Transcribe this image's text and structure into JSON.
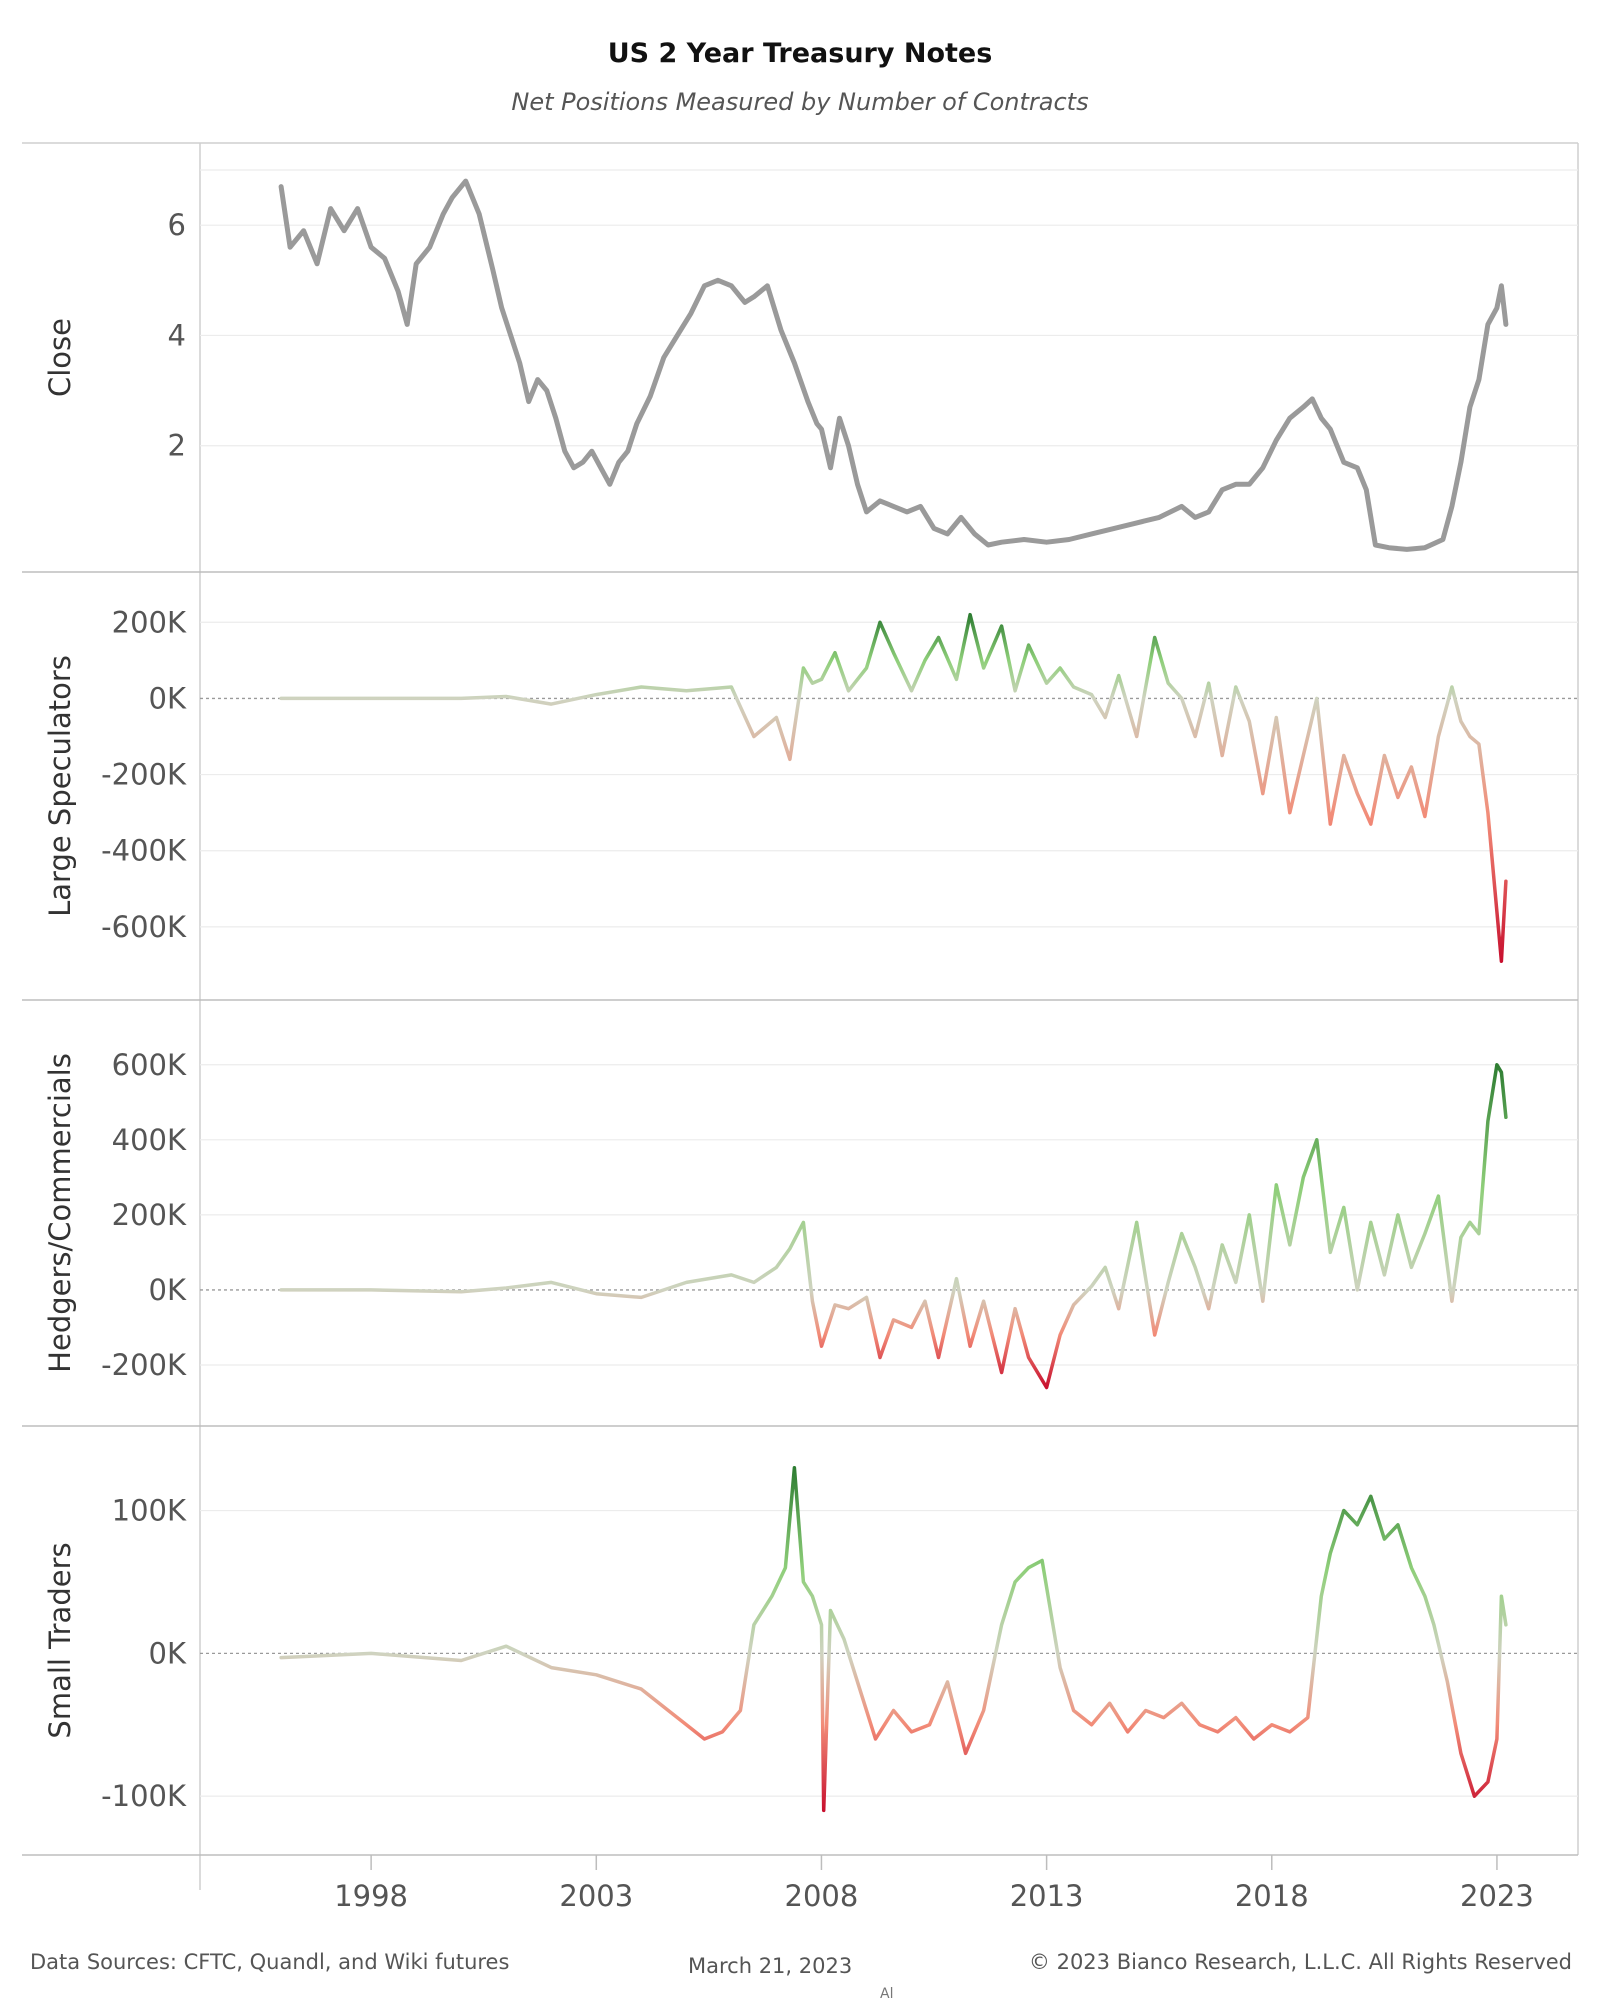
{
  "title": "US 2 Year Treasury Notes",
  "subtitle": "Net Positions Measured by Number of Contracts",
  "footer": {
    "sources": "Data Sources: CFTC, Quandl, and Wiki futures",
    "date": "March 21, 2023",
    "copyright": "© 2023 Bianco Research, L.L.C. All Rights Reserved",
    "mark": "Al"
  },
  "colors": {
    "close_line": "#9a9a9a",
    "positive_strong": "#2e7d32",
    "positive": "#8fcf7a",
    "neutral": "#cfd3c0",
    "negative": "#f28c78",
    "negative_strong": "#c8102e",
    "zero_line": "#999999"
  },
  "chart_data": [
    {
      "type": "line",
      "panel": "close",
      "ylabel": "Close",
      "yticks": [
        2,
        4,
        6
      ],
      "yticklabels": [
        "2",
        "4",
        "6"
      ],
      "ylim": [
        0,
        7.2
      ],
      "xlim": [
        1994.2,
        2024.8
      ],
      "xticks": [
        1998,
        2003,
        2008,
        2013,
        2018,
        2023
      ],
      "xticklabels": [
        "1998",
        "2003",
        "2008",
        "2013",
        "2018",
        "2023"
      ],
      "x": [
        1996.0,
        1996.2,
        1996.5,
        1996.8,
        1997.1,
        1997.4,
        1997.7,
        1998.0,
        1998.3,
        1998.6,
        1998.8,
        1999.0,
        1999.3,
        1999.6,
        1999.8,
        2000.1,
        2000.4,
        2000.7,
        2000.9,
        2001.1,
        2001.3,
        2001.5,
        2001.7,
        2001.9,
        2002.1,
        2002.3,
        2002.5,
        2002.7,
        2002.9,
        2003.1,
        2003.3,
        2003.5,
        2003.7,
        2003.9,
        2004.2,
        2004.5,
        2004.8,
        2005.1,
        2005.4,
        2005.7,
        2006.0,
        2006.3,
        2006.5,
        2006.8,
        2007.1,
        2007.4,
        2007.7,
        2007.9,
        2008.0,
        2008.2,
        2008.4,
        2008.6,
        2008.8,
        2009.0,
        2009.3,
        2009.6,
        2009.9,
        2010.2,
        2010.5,
        2010.8,
        2011.1,
        2011.4,
        2011.7,
        2012.0,
        2012.5,
        2013.0,
        2013.5,
        2014.0,
        2014.5,
        2015.0,
        2015.5,
        2016.0,
        2016.3,
        2016.6,
        2016.9,
        2017.2,
        2017.5,
        2017.8,
        2018.1,
        2018.4,
        2018.7,
        2018.9,
        2019.1,
        2019.3,
        2019.6,
        2019.9,
        2020.1,
        2020.3,
        2020.6,
        2021.0,
        2021.4,
        2021.8,
        2022.0,
        2022.2,
        2022.4,
        2022.6,
        2022.8,
        2023.0,
        2023.1,
        2023.2
      ],
      "values": [
        6.7,
        5.6,
        5.9,
        5.3,
        6.3,
        5.9,
        6.3,
        5.6,
        5.4,
        4.8,
        4.2,
        5.3,
        5.6,
        6.2,
        6.5,
        6.8,
        6.2,
        5.2,
        4.5,
        4.0,
        3.5,
        2.8,
        3.2,
        3.0,
        2.5,
        1.9,
        1.6,
        1.7,
        1.9,
        1.6,
        1.3,
        1.7,
        1.9,
        2.4,
        2.9,
        3.6,
        4.0,
        4.4,
        4.9,
        5.0,
        4.9,
        4.6,
        4.7,
        4.9,
        4.1,
        3.5,
        2.8,
        2.4,
        2.3,
        1.6,
        2.5,
        2.0,
        1.3,
        0.8,
        1.0,
        0.9,
        0.8,
        0.9,
        0.5,
        0.4,
        0.7,
        0.4,
        0.2,
        0.25,
        0.3,
        0.25,
        0.3,
        0.4,
        0.5,
        0.6,
        0.7,
        0.9,
        0.7,
        0.8,
        1.2,
        1.3,
        1.3,
        1.6,
        2.1,
        2.5,
        2.7,
        2.85,
        2.5,
        2.3,
        1.7,
        1.6,
        1.2,
        0.2,
        0.15,
        0.12,
        0.15,
        0.3,
        0.9,
        1.7,
        2.7,
        3.2,
        4.2,
        4.5,
        4.9,
        4.2
      ],
      "line_color": "#9a9a9a"
    },
    {
      "type": "line",
      "panel": "large-speculators",
      "ylabel": "Large Speculators",
      "yticks": [
        -600000,
        -400000,
        -200000,
        0,
        200000
      ],
      "yticklabels": [
        "-600K",
        "-400K",
        "-200K",
        "0K",
        "200K"
      ],
      "ylim": [
        -750000,
        290000
      ],
      "x": [
        1996.0,
        1998.0,
        2000.0,
        2001.0,
        2002.0,
        2003.0,
        2004.0,
        2005.0,
        2006.0,
        2006.5,
        2007.0,
        2007.3,
        2007.6,
        2007.8,
        2008.0,
        2008.3,
        2008.6,
        2009.0,
        2009.3,
        2009.6,
        2010.0,
        2010.3,
        2010.6,
        2011.0,
        2011.3,
        2011.6,
        2012.0,
        2012.3,
        2012.6,
        2013.0,
        2013.3,
        2013.6,
        2014.0,
        2014.3,
        2014.6,
        2015.0,
        2015.4,
        2015.7,
        2016.0,
        2016.3,
        2016.6,
        2016.9,
        2017.2,
        2017.5,
        2017.8,
        2018.1,
        2018.4,
        2018.7,
        2019.0,
        2019.3,
        2019.6,
        2019.9,
        2020.2,
        2020.5,
        2020.8,
        2021.1,
        2021.4,
        2021.7,
        2022.0,
        2022.2,
        2022.4,
        2022.6,
        2022.8,
        2023.0,
        2023.1,
        2023.2
      ],
      "values": [
        0,
        0,
        0,
        5000,
        -15000,
        10000,
        30000,
        20000,
        30000,
        -100000,
        -50000,
        -160000,
        80000,
        40000,
        50000,
        120000,
        20000,
        80000,
        200000,
        120000,
        20000,
        100000,
        160000,
        50000,
        220000,
        80000,
        190000,
        20000,
        140000,
        40000,
        80000,
        30000,
        10000,
        -50000,
        60000,
        -100000,
        160000,
        40000,
        0,
        -100000,
        40000,
        -150000,
        30000,
        -60000,
        -250000,
        -50000,
        -300000,
        -150000,
        0,
        -330000,
        -150000,
        -250000,
        -330000,
        -150000,
        -260000,
        -180000,
        -310000,
        -100000,
        30000,
        -60000,
        -100000,
        -120000,
        -300000,
        -560000,
        -690000,
        -480000
      ]
    },
    {
      "type": "line",
      "panel": "hedgers-commercials",
      "ylabel": "Hedgers/Commercials",
      "yticks": [
        -200000,
        0,
        200000,
        400000,
        600000
      ],
      "yticklabels": [
        "-200K",
        "0K",
        "200K",
        "400K",
        "600K"
      ],
      "ylim": [
        -320000,
        730000
      ],
      "x": [
        1996.0,
        1998.0,
        2000.0,
        2001.0,
        2002.0,
        2003.0,
        2004.0,
        2005.0,
        2006.0,
        2006.5,
        2007.0,
        2007.3,
        2007.6,
        2007.8,
        2008.0,
        2008.3,
        2008.6,
        2009.0,
        2009.3,
        2009.6,
        2010.0,
        2010.3,
        2010.6,
        2011.0,
        2011.3,
        2011.6,
        2012.0,
        2012.3,
        2012.6,
        2013.0,
        2013.3,
        2013.6,
        2014.0,
        2014.3,
        2014.6,
        2015.0,
        2015.4,
        2015.7,
        2016.0,
        2016.3,
        2016.6,
        2016.9,
        2017.2,
        2017.5,
        2017.8,
        2018.1,
        2018.4,
        2018.7,
        2019.0,
        2019.3,
        2019.6,
        2019.9,
        2020.2,
        2020.5,
        2020.8,
        2021.1,
        2021.4,
        2021.7,
        2022.0,
        2022.2,
        2022.4,
        2022.6,
        2022.8,
        2023.0,
        2023.1,
        2023.2
      ],
      "values": [
        0,
        0,
        -5000,
        5000,
        20000,
        -10000,
        -20000,
        20000,
        40000,
        20000,
        60000,
        110000,
        180000,
        -30000,
        -150000,
        -40000,
        -50000,
        -20000,
        -180000,
        -80000,
        -100000,
        -30000,
        -180000,
        30000,
        -150000,
        -30000,
        -220000,
        -50000,
        -180000,
        -260000,
        -120000,
        -40000,
        10000,
        60000,
        -50000,
        180000,
        -120000,
        20000,
        150000,
        60000,
        -50000,
        120000,
        20000,
        200000,
        -30000,
        280000,
        120000,
        300000,
        400000,
        100000,
        220000,
        0,
        180000,
        40000,
        200000,
        60000,
        150000,
        250000,
        -30000,
        140000,
        180000,
        150000,
        450000,
        600000,
        580000,
        460000
      ]
    },
    {
      "type": "line",
      "panel": "small-traders",
      "ylabel": "Small Traders",
      "yticks": [
        -100000,
        0,
        100000
      ],
      "yticklabels": [
        "-100K",
        "0K",
        "100K"
      ],
      "ylim": [
        -130000,
        148000
      ],
      "x": [
        1996.0,
        1998.0,
        2000.0,
        2001.0,
        2002.0,
        2003.0,
        2004.0,
        2004.6,
        2005.0,
        2005.4,
        2005.8,
        2006.2,
        2006.5,
        2006.9,
        2007.2,
        2007.4,
        2007.6,
        2007.8,
        2008.0,
        2008.05,
        2008.2,
        2008.5,
        2008.9,
        2009.2,
        2009.6,
        2010.0,
        2010.4,
        2010.8,
        2011.2,
        2011.6,
        2012.0,
        2012.3,
        2012.6,
        2012.9,
        2013.3,
        2013.6,
        2014.0,
        2014.4,
        2014.8,
        2015.2,
        2015.6,
        2016.0,
        2016.4,
        2016.8,
        2017.2,
        2017.6,
        2018.0,
        2018.4,
        2018.8,
        2019.1,
        2019.3,
        2019.6,
        2019.9,
        2020.2,
        2020.5,
        2020.8,
        2021.1,
        2021.4,
        2021.6,
        2021.9,
        2022.2,
        2022.5,
        2022.8,
        2023.0,
        2023.1,
        2023.2
      ],
      "values": [
        -3000,
        0,
        -5000,
        5000,
        -10000,
        -15000,
        -25000,
        -40000,
        -50000,
        -60000,
        -55000,
        -40000,
        20000,
        40000,
        60000,
        130000,
        50000,
        40000,
        20000,
        -110000,
        30000,
        10000,
        -30000,
        -60000,
        -40000,
        -55000,
        -50000,
        -20000,
        -70000,
        -40000,
        20000,
        50000,
        60000,
        65000,
        -10000,
        -40000,
        -50000,
        -35000,
        -55000,
        -40000,
        -45000,
        -35000,
        -50000,
        -55000,
        -45000,
        -60000,
        -50000,
        -55000,
        -45000,
        40000,
        70000,
        100000,
        90000,
        110000,
        80000,
        90000,
        60000,
        40000,
        20000,
        -20000,
        -70000,
        -100000,
        -90000,
        -60000,
        40000,
        20000
      ]
    }
  ]
}
